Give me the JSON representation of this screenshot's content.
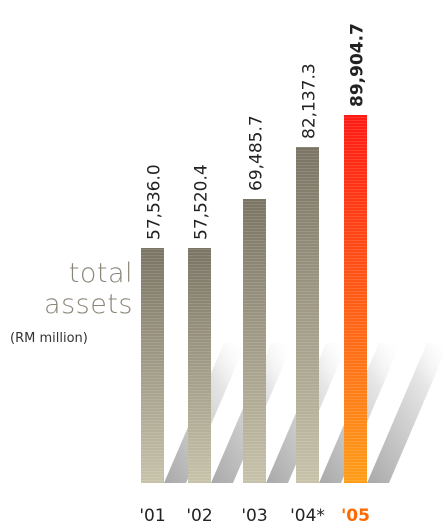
{
  "heading": {
    "line1": "total",
    "line2": "assets",
    "unit": "(RM million)"
  },
  "chart_data": {
    "type": "bar",
    "categories": [
      "'01",
      "'02",
      "'03",
      "'04*",
      "'05"
    ],
    "values": [
      57536.0,
      57520.4,
      69485.7,
      82137.3,
      89904.7
    ],
    "value_labels": [
      "57,536.0",
      "57,520.4",
      "69,485.7",
      "82,137.3",
      "89,904.7"
    ],
    "highlight_index": 4,
    "ylim": [
      0,
      90000
    ],
    "grid": false,
    "colors": {
      "bar_top": "#7a7464",
      "bar_bottom": "#c7c2aa",
      "highlight_top": "#ff1a14",
      "highlight_bottom": "#ff9e19",
      "highlight_label": "#ff6a00",
      "text": "#222222",
      "shadow": "#9a9a9a"
    }
  }
}
